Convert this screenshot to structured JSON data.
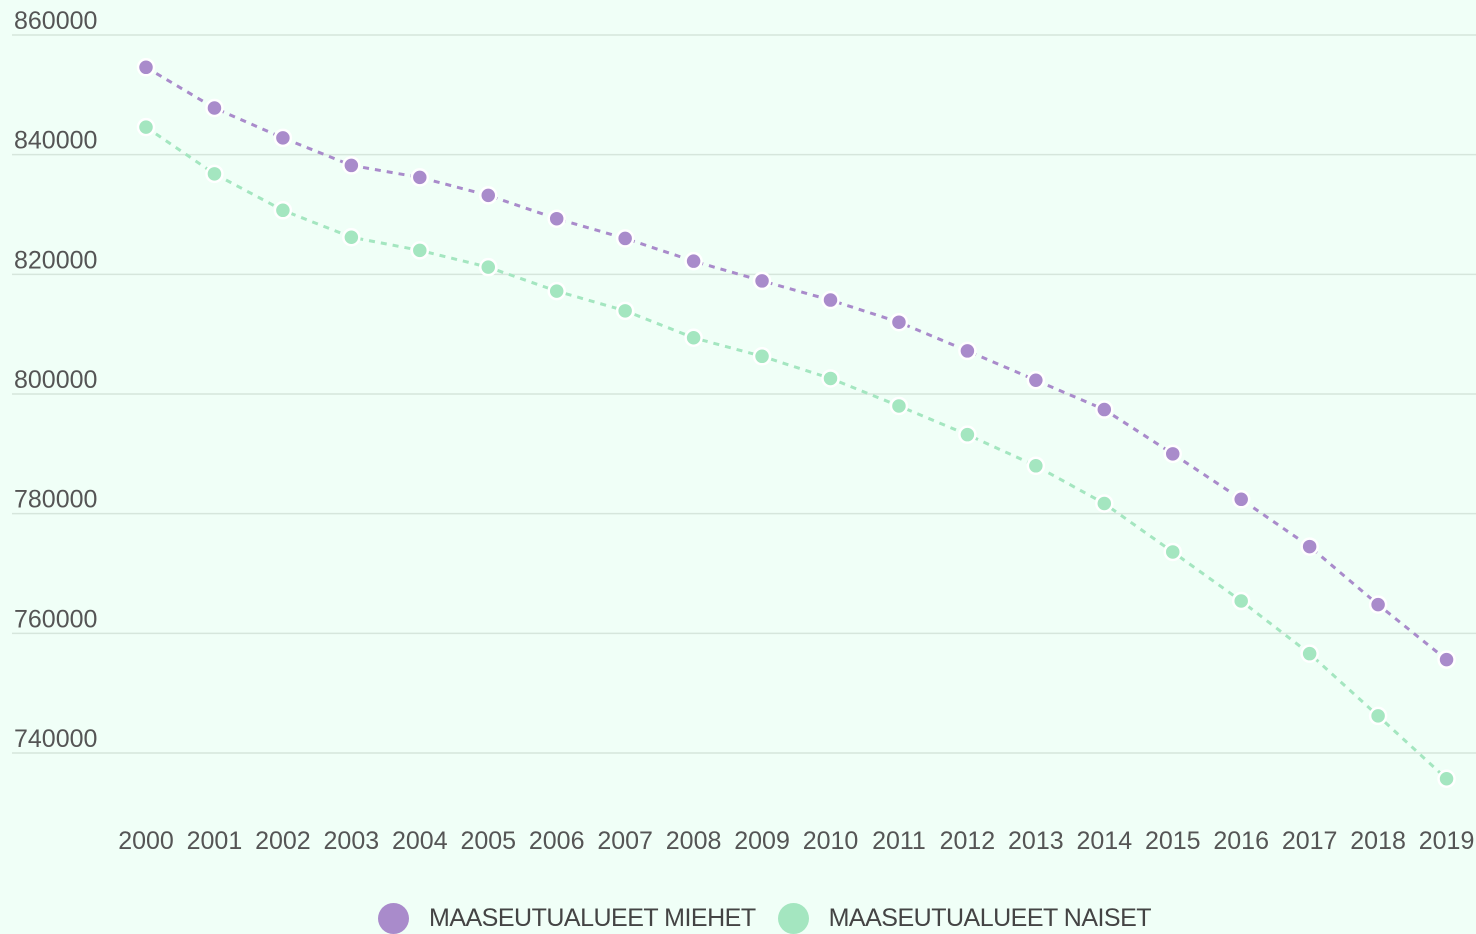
{
  "chart_data": {
    "type": "line",
    "x": [
      "2000",
      "2001",
      "2002",
      "2003",
      "2004",
      "2005",
      "2006",
      "2007",
      "2008",
      "2009",
      "2010",
      "2011",
      "2012",
      "2013",
      "2014",
      "2015",
      "2016",
      "2017",
      "2018",
      "2019"
    ],
    "y_ticks": [
      "860000",
      "840000",
      "820000",
      "800000",
      "780000",
      "760000",
      "740000"
    ],
    "ylim": [
      727000,
      860000
    ],
    "grid": true,
    "legend_position": "bottom",
    "series": [
      {
        "name": "MAASEUTUALUEET MIEHET",
        "color": "#a98bcb",
        "line_style": "dashed",
        "values": [
          854600,
          847800,
          842800,
          838200,
          836200,
          833200,
          829300,
          826000,
          822200,
          818900,
          815700,
          812000,
          807200,
          802300,
          797400,
          790000,
          782400,
          774500,
          764800,
          755600
        ]
      },
      {
        "name": "MAASEUTUALUEET NAISET",
        "color": "#a4e6c0",
        "line_style": "dashed",
        "values": [
          844600,
          836800,
          830700,
          826200,
          824000,
          821200,
          817200,
          813900,
          809400,
          806300,
          802600,
          798000,
          793200,
          788000,
          781700,
          773600,
          765400,
          756600,
          746200,
          735700
        ]
      }
    ]
  },
  "colors": {
    "background": "#f0fff7",
    "grid": "#d6e6dc",
    "text": "#555555"
  }
}
